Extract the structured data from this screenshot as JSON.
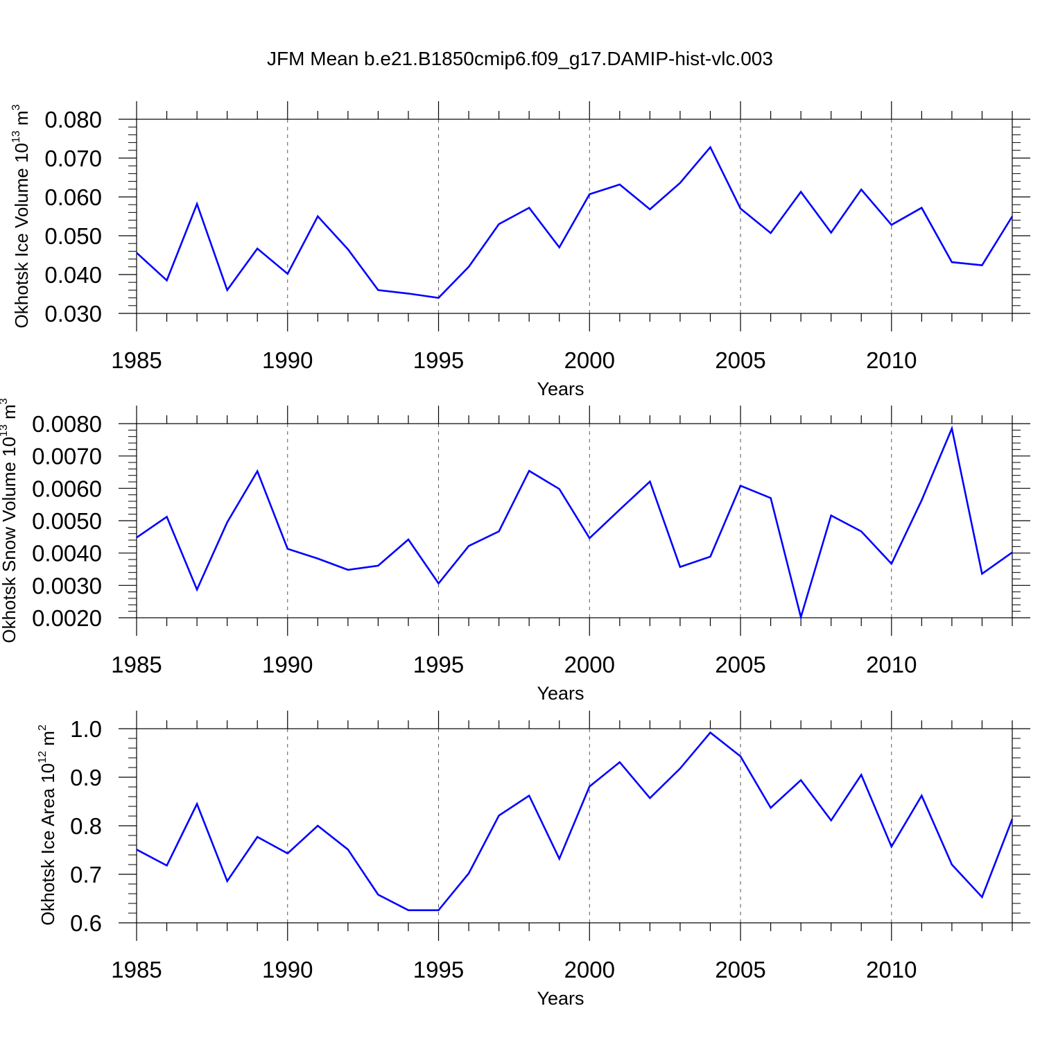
{
  "title": "JFM Mean b.e21.B1850cmip6.f09_g17.DAMIP-hist-vlc.003",
  "colors": {
    "line": "#0000ff",
    "axis": "#000000",
    "grid": "#555555"
  },
  "chart_data": [
    {
      "type": "line",
      "ylabel": {
        "text": "Okhotsk Ice Volume 10",
        "sup": "13",
        "unit": " m",
        "unit_sup": "3"
      },
      "xlabel": "Years",
      "x": [
        1985,
        1986,
        1987,
        1988,
        1989,
        1990,
        1991,
        1992,
        1993,
        1994,
        1995,
        1996,
        1997,
        1998,
        1999,
        2000,
        2001,
        2002,
        2003,
        2004,
        2005,
        2006,
        2007,
        2008,
        2009,
        2010,
        2011,
        2012,
        2013,
        2014
      ],
      "values": [
        0.0456,
        0.0385,
        0.0582,
        0.036,
        0.0467,
        0.0402,
        0.055,
        0.0465,
        0.036,
        0.0351,
        0.034,
        0.042,
        0.053,
        0.0572,
        0.047,
        0.0607,
        0.0632,
        0.0568,
        0.0636,
        0.0728,
        0.057,
        0.0507,
        0.0613,
        0.0508,
        0.0619,
        0.0528,
        0.0572,
        0.0432,
        0.0424,
        0.055
      ],
      "xlim": [
        1985,
        2014
      ],
      "ylim": [
        0.03,
        0.08
      ],
      "yticks": [
        "0.030",
        "0.040",
        "0.050",
        "0.060",
        "0.070",
        "0.080"
      ],
      "xticks": [
        "1985",
        "1990",
        "1995",
        "2000",
        "2005",
        "2010"
      ]
    },
    {
      "type": "line",
      "ylabel": {
        "text": "Okhotsk Snow Volume 10",
        "sup": "13",
        "unit": " m",
        "unit_sup": "3"
      },
      "xlabel": "Years",
      "x": [
        1985,
        1986,
        1987,
        1988,
        1989,
        1990,
        1991,
        1992,
        1993,
        1994,
        1995,
        1996,
        1997,
        1998,
        1999,
        2000,
        2001,
        2002,
        2003,
        2004,
        2005,
        2006,
        2007,
        2008,
        2009,
        2010,
        2011,
        2012,
        2013,
        2014
      ],
      "values": [
        0.00448,
        0.00512,
        0.00287,
        0.00495,
        0.00653,
        0.00413,
        0.00383,
        0.00348,
        0.00361,
        0.00442,
        0.00306,
        0.00422,
        0.00467,
        0.00654,
        0.00598,
        0.00446,
        0.00534,
        0.00621,
        0.00357,
        0.00389,
        0.00608,
        0.0057,
        0.00202,
        0.00516,
        0.00467,
        0.00367,
        0.00563,
        0.00785,
        0.00336,
        0.00402
      ],
      "xlim": [
        1985,
        2014
      ],
      "ylim": [
        0.002,
        0.008
      ],
      "yticks": [
        "0.0020",
        "0.0030",
        "0.0040",
        "0.0050",
        "0.0060",
        "0.0070",
        "0.0080"
      ],
      "xticks": [
        "1985",
        "1990",
        "1995",
        "2000",
        "2005",
        "2010"
      ]
    },
    {
      "type": "line",
      "ylabel": {
        "text": "Okhotsk Ice Area 10",
        "sup": "12",
        "unit": " m",
        "unit_sup": "2"
      },
      "xlabel": "Years",
      "x": [
        1985,
        1986,
        1987,
        1988,
        1989,
        1990,
        1991,
        1992,
        1993,
        1994,
        1995,
        1996,
        1997,
        1998,
        1999,
        2000,
        2001,
        2002,
        2003,
        2004,
        2005,
        2006,
        2007,
        2008,
        2009,
        2010,
        2011,
        2012,
        2013,
        2014
      ],
      "values": [
        0.751,
        0.718,
        0.845,
        0.686,
        0.777,
        0.743,
        0.8,
        0.751,
        0.658,
        0.626,
        0.626,
        0.702,
        0.821,
        0.862,
        0.732,
        0.881,
        0.931,
        0.857,
        0.918,
        0.992,
        0.943,
        0.837,
        0.894,
        0.811,
        0.905,
        0.757,
        0.862,
        0.72,
        0.653,
        0.814
      ],
      "xlim": [
        1985,
        2014
      ],
      "ylim": [
        0.6,
        1.0
      ],
      "yticks": [
        "0.6",
        "0.7",
        "0.8",
        "0.9",
        "1.0"
      ],
      "xticks": [
        "1985",
        "1990",
        "1995",
        "2000",
        "2005",
        "2010"
      ]
    }
  ]
}
